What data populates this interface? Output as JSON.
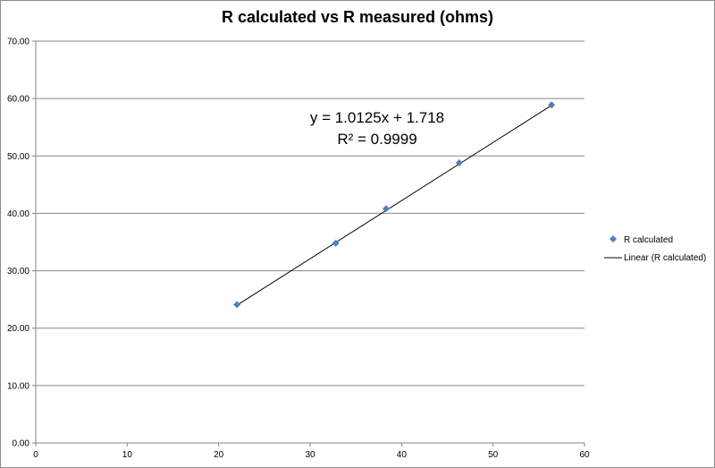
{
  "chart_data": {
    "type": "scatter",
    "title": "R calculated vs R measured (ohms)",
    "xlim": [
      0,
      60
    ],
    "ylim": [
      0,
      70
    ],
    "x_ticks": [
      "0",
      "10",
      "20",
      "30",
      "40",
      "50",
      "60"
    ],
    "y_ticks": [
      "0.00",
      "10.00",
      "20.00",
      "30.00",
      "40.00",
      "50.00",
      "60.00",
      "70.00"
    ],
    "grid": "horizontal",
    "legend_position": "right",
    "series": [
      {
        "name": "R calculated",
        "x": [
          22.0,
          32.8,
          38.3,
          46.3,
          56.4
        ],
        "y": [
          24.1,
          34.8,
          40.8,
          48.8,
          58.9
        ],
        "color": "#4f81bd",
        "marker": "diamond"
      }
    ],
    "trendline": {
      "name": "Linear (R calculated)",
      "slope": 1.0125,
      "intercept": 1.718,
      "color": "#000000",
      "equation": "y = 1.0125x + 1.718",
      "r_squared": "R² = 0.9999"
    }
  }
}
